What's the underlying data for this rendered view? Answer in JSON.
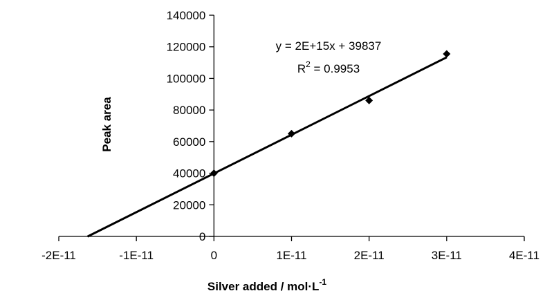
{
  "chart_data": {
    "type": "scatter",
    "title": "",
    "xlabel": "Silver added / mol·L",
    "xlabel_sup": "-1",
    "ylabel": "Peak area",
    "xlim": [
      -2e-11,
      4e-11
    ],
    "ylim": [
      0,
      140000
    ],
    "x_ticks": [
      -2e-11,
      -1e-11,
      0,
      1e-11,
      2e-11,
      3e-11,
      4e-11
    ],
    "x_tick_labels": [
      "-2E-11",
      "-1E-11",
      "0",
      "1E-11",
      "2E-11",
      "3E-11",
      "4E-11"
    ],
    "y_ticks": [
      0,
      20000,
      40000,
      60000,
      80000,
      100000,
      120000,
      140000
    ],
    "y_tick_labels": [
      "0",
      "20000",
      "40000",
      "60000",
      "80000",
      "100000",
      "120000",
      "140000"
    ],
    "grid": false,
    "legend": "none",
    "series": [
      {
        "x": [
          0,
          1e-11,
          2e-11,
          3e-11
        ],
        "y": [
          40000,
          65000,
          86000,
          115500
        ],
        "marker": "diamond",
        "color": "#000000"
      }
    ],
    "trendline": {
      "slope": 2450000000000000.0,
      "intercept": 39837,
      "x_range": [
        -1.63e-11,
        3e-11
      ],
      "color": "#000000"
    },
    "annotations": {
      "equation": "y = 2E+15x + 39837",
      "r2_prefix": "R",
      "r2_sup": "2",
      "r2_suffix": " = 0.9953"
    }
  }
}
